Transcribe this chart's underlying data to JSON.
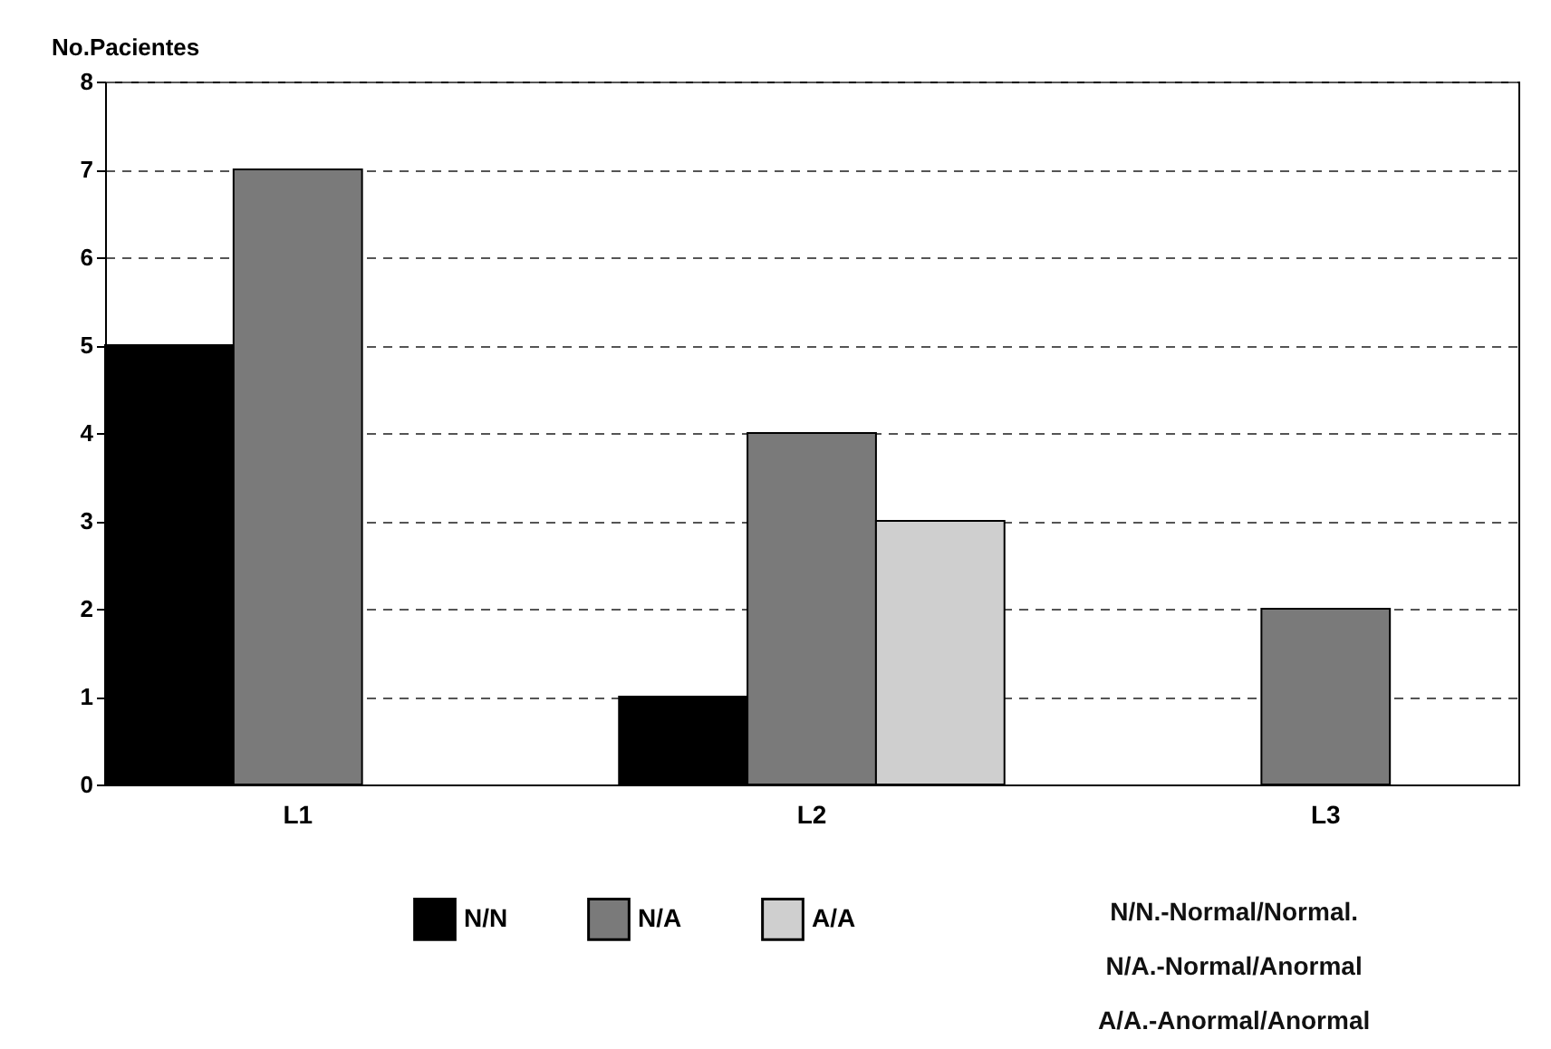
{
  "chart_data": {
    "type": "bar",
    "ylabel": "No.Pacientes",
    "categories": [
      "L1",
      "L2",
      "L3"
    ],
    "series": [
      {
        "name": "N/N",
        "color": "#000000",
        "values": [
          5,
          1,
          null
        ]
      },
      {
        "name": "N/A",
        "color": "#7a7a7a",
        "values": [
          7,
          4,
          2
        ]
      },
      {
        "name": "A/A",
        "color": "#cfcfcf",
        "values": [
          null,
          3,
          null
        ]
      }
    ],
    "ylim": [
      0,
      8
    ],
    "yticks": [
      0,
      1,
      2,
      3,
      4,
      5,
      6,
      7,
      8
    ],
    "grid": "y",
    "legend": "bottom",
    "annotations": [
      "N/N.-Normal/Normal.",
      "N/A.-Normal/Anormal",
      "A/A.-Anormal/Anormal"
    ]
  }
}
